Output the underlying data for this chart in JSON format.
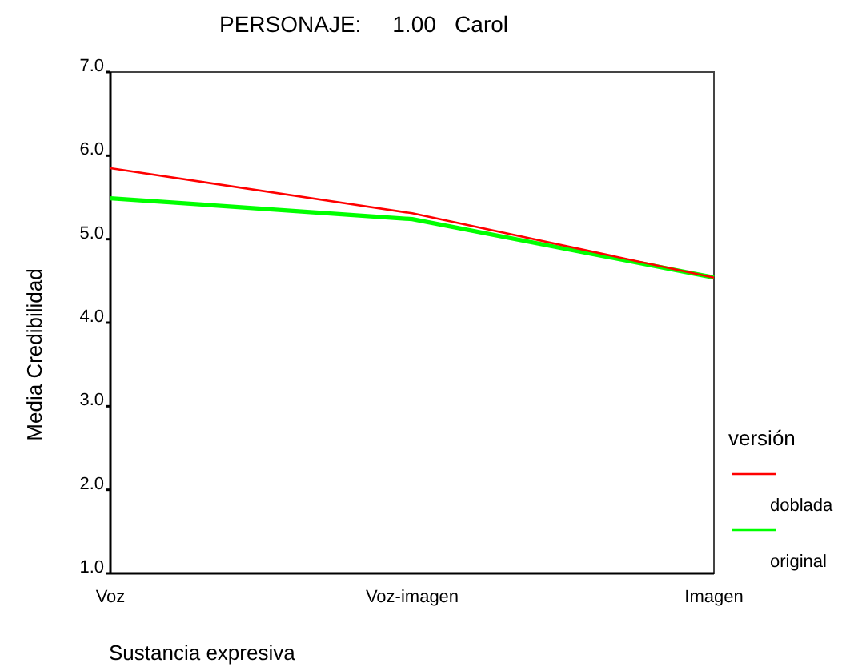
{
  "chart_data": {
    "type": "line",
    "title": "PERSONAJE:     1.00   Carol",
    "xlabel": "Sustancia expresiva",
    "ylabel": "Media Credibilidad",
    "legend_title": "versión",
    "legend": "right",
    "marker": "none",
    "categories": [
      "Voz",
      "Voz-imagen",
      "Imagen"
    ],
    "series": [
      {
        "name": "doblada",
        "color": "#ff0000",
        "values": [
          5.85,
          5.31,
          4.54
        ]
      },
      {
        "name": "original",
        "color": "#00ff00",
        "values": [
          5.49,
          5.24,
          4.54
        ]
      }
    ],
    "ylim": [
      1,
      7
    ],
    "yticks": [
      {
        "value": 1,
        "label": "1.0"
      },
      {
        "value": 2,
        "label": "2.0"
      },
      {
        "value": 3,
        "label": "3.0"
      },
      {
        "value": 4,
        "label": "4.0"
      },
      {
        "value": 5,
        "label": "5.0"
      },
      {
        "value": 6,
        "label": "6.0"
      },
      {
        "value": 7,
        "label": "7.0"
      }
    ]
  }
}
